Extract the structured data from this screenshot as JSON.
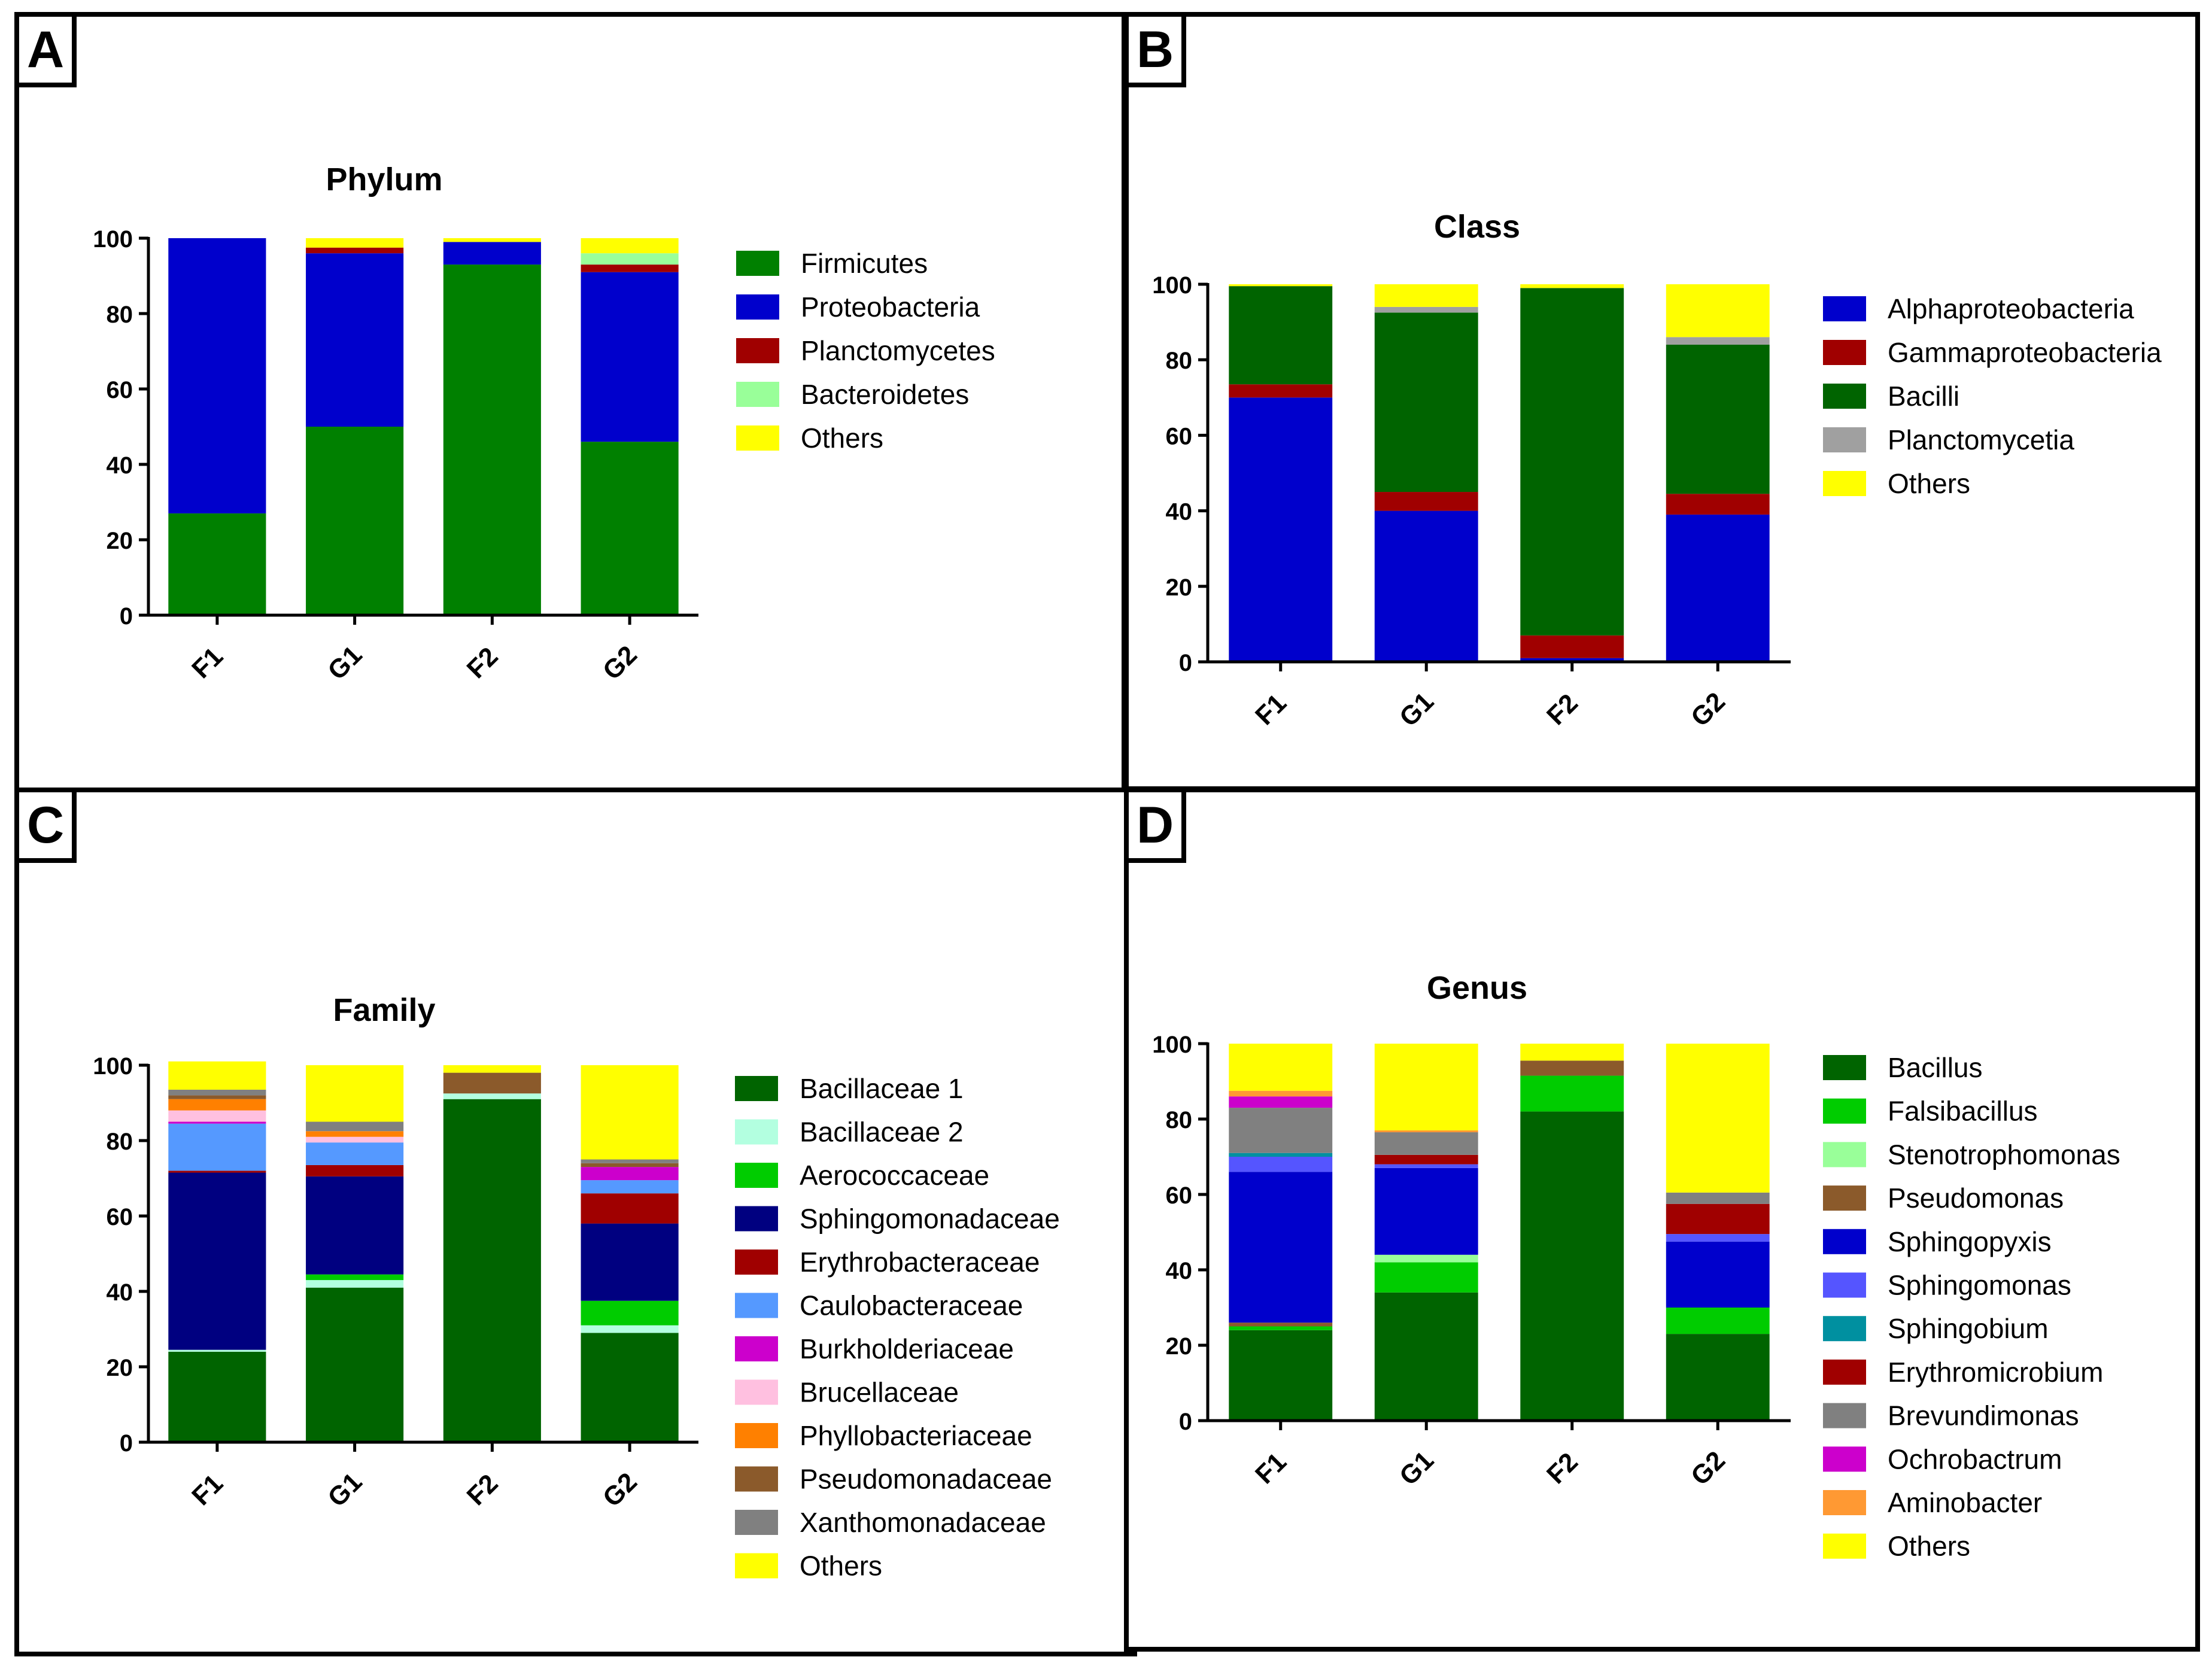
{
  "chart_data": [
    {
      "panel": "A",
      "type": "bar",
      "stacked": true,
      "title": "Phylum",
      "categories": [
        "F1",
        "G1",
        "F2",
        "G2"
      ],
      "ylim": [
        0,
        100
      ],
      "yticks": [
        "0",
        "20",
        "40",
        "60",
        "80",
        "100"
      ],
      "series": [
        {
          "name": "Firmicutes",
          "color": "#008000",
          "values": [
            27,
            50,
            93,
            46
          ]
        },
        {
          "name": "Proteobacteria",
          "color": "#0000cc",
          "values": [
            73,
            46,
            6,
            45
          ]
        },
        {
          "name": "Planctomycetes",
          "color": "#a00000",
          "values": [
            0,
            1.5,
            0,
            2
          ]
        },
        {
          "name": "Bacteroidetes",
          "color": "#99ff99",
          "values": [
            0,
            0,
            0,
            3
          ]
        },
        {
          "name": "Others",
          "color": "#ffff00",
          "values": [
            0,
            2.5,
            1,
            4
          ]
        }
      ]
    },
    {
      "panel": "B",
      "type": "bar",
      "stacked": true,
      "title": "Class",
      "categories": [
        "F1",
        "G1",
        "F2",
        "G2"
      ],
      "ylim": [
        0,
        100
      ],
      "yticks": [
        "0",
        "20",
        "40",
        "60",
        "80",
        "100"
      ],
      "series": [
        {
          "name": "Alphaproteobacteria",
          "color": "#0000cc",
          "values": [
            70,
            40,
            1,
            39
          ]
        },
        {
          "name": "Gammaproteobacteria",
          "color": "#a00000",
          "values": [
            3.5,
            5,
            6,
            5.5
          ]
        },
        {
          "name": "Bacilli",
          "color": "#006400",
          "values": [
            26,
            47.5,
            92,
            39.5
          ]
        },
        {
          "name": "Planctomycetia",
          "color": "#a0a0a0",
          "values": [
            0,
            1.5,
            0,
            2
          ]
        },
        {
          "name": "Others",
          "color": "#ffff00",
          "values": [
            0.5,
            6,
            1,
            14
          ]
        }
      ]
    },
    {
      "panel": "C",
      "type": "bar",
      "stacked": true,
      "title": "Family",
      "categories": [
        "F1",
        "G1",
        "F2",
        "G2"
      ],
      "ylim": [
        0,
        100
      ],
      "yticks": [
        "0",
        "20",
        "40",
        "60",
        "80",
        "100"
      ],
      "series": [
        {
          "name": "Bacillaceae 1",
          "color": "#006400",
          "values": [
            24,
            41,
            91,
            29
          ]
        },
        {
          "name": "Bacillaceae 2",
          "color": "#b3ffe0",
          "values": [
            0.5,
            2,
            1.5,
            2
          ]
        },
        {
          "name": "Aerococcaceae",
          "color": "#00cc00",
          "values": [
            0,
            1.5,
            0,
            6.5
          ]
        },
        {
          "name": "Sphingomonadaceae",
          "color": "#000080",
          "values": [
            47,
            26,
            0,
            20.5
          ]
        },
        {
          "name": "Erythrobacteraceae",
          "color": "#a00000",
          "values": [
            0.5,
            3,
            0,
            8
          ]
        },
        {
          "name": "Caulobacteraceae",
          "color": "#5599ff",
          "values": [
            12.5,
            6,
            0,
            3.5
          ]
        },
        {
          "name": "Burkholderiaceae",
          "color": "#cc00cc",
          "values": [
            0.5,
            0,
            0,
            3.5
          ]
        },
        {
          "name": "Brucellaceae",
          "color": "#ffc0e0",
          "values": [
            3,
            1.5,
            0,
            0
          ]
        },
        {
          "name": "Phyllobacteriaceae",
          "color": "#ff8000",
          "values": [
            3,
            1.5,
            0,
            0
          ]
        },
        {
          "name": "Pseudomonadaceae",
          "color": "#8b5a2b",
          "values": [
            1,
            0,
            5.5,
            1
          ]
        },
        {
          "name": "Xanthomonadaceae",
          "color": "#808080",
          "values": [
            1.5,
            2.5,
            0,
            1
          ]
        },
        {
          "name": "Others",
          "color": "#ffff00",
          "values": [
            7.5,
            15,
            2,
            25
          ]
        }
      ]
    },
    {
      "panel": "D",
      "type": "bar",
      "stacked": true,
      "title": "Genus",
      "categories": [
        "F1",
        "G1",
        "F2",
        "G2"
      ],
      "ylim": [
        0,
        100
      ],
      "yticks": [
        "0",
        "20",
        "40",
        "60",
        "80",
        "100"
      ],
      "series": [
        {
          "name": "Bacillus",
          "color": "#006400",
          "values": [
            24,
            34,
            82,
            23
          ]
        },
        {
          "name": "Falsibacillus",
          "color": "#00cc00",
          "values": [
            1,
            8,
            9.5,
            7
          ]
        },
        {
          "name": "Stenotrophomonas",
          "color": "#99ff99",
          "values": [
            0,
            2,
            0,
            0
          ]
        },
        {
          "name": "Pseudomonas",
          "color": "#8b5a2b",
          "values": [
            1,
            0,
            4,
            0
          ]
        },
        {
          "name": "Sphingopyxis",
          "color": "#0000cc",
          "values": [
            40,
            23,
            0,
            17.5
          ]
        },
        {
          "name": "Sphingomonas",
          "color": "#5555ff",
          "values": [
            4,
            1,
            0,
            2
          ]
        },
        {
          "name": "Sphingobium",
          "color": "#0090a0",
          "values": [
            1,
            0,
            0,
            0
          ]
        },
        {
          "name": "Erythromicrobium",
          "color": "#a00000",
          "values": [
            0,
            2.5,
            0,
            8
          ]
        },
        {
          "name": " Brevundimonas",
          "color": "#808080",
          "values": [
            12,
            6,
            0,
            3
          ]
        },
        {
          "name": "Ochrobactrum",
          "color": "#cc00cc",
          "values": [
            3,
            0,
            0,
            0
          ]
        },
        {
          "name": "Aminobacter",
          "color": "#ff9933",
          "values": [
            1.5,
            0.5,
            0,
            0
          ]
        },
        {
          "name": "Others",
          "color": "#ffff00",
          "values": [
            12.5,
            23,
            4.5,
            39.5
          ]
        }
      ]
    }
  ],
  "panel_letters": [
    "A",
    "B",
    "C",
    "D"
  ]
}
